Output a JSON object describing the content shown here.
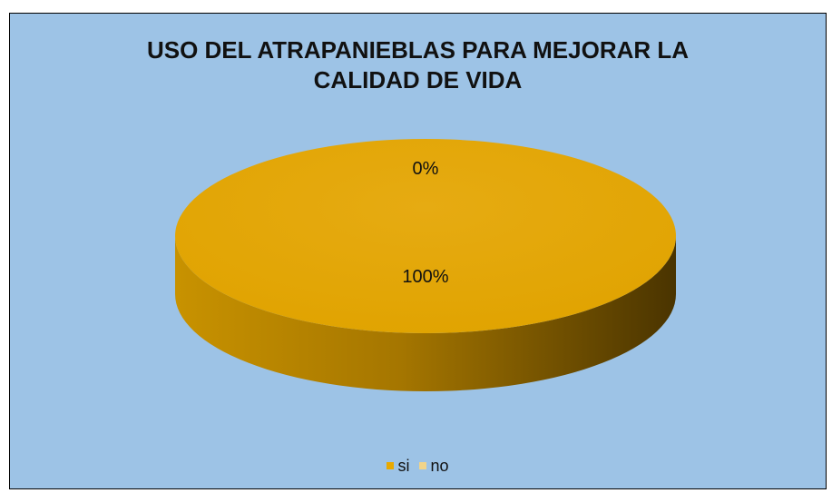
{
  "chart_data": {
    "type": "pie",
    "title_lines": [
      "USO DEL ATRAPANIEBLAS  PARA MEJORAR LA",
      "CALIDAD DE VIDA"
    ],
    "categories": [
      "si",
      "no"
    ],
    "values": [
      100,
      0
    ],
    "data_labels": [
      "100%",
      "0%"
    ],
    "colors": [
      "#e8a900",
      "#f1d48a"
    ],
    "legend_position": "bottom",
    "three_d": true
  },
  "colors": {
    "background": "#9dc3e6",
    "border": "#000000"
  }
}
